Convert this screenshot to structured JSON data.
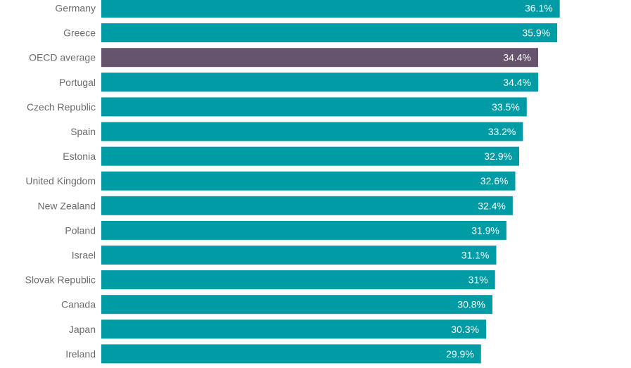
{
  "chart_data": {
    "type": "bar",
    "orientation": "horizontal",
    "categories": [
      "Germany",
      "Greece",
      "OECD average",
      "Portugal",
      "Czech Republic",
      "Spain",
      "Estonia",
      "United Kingdom",
      "New Zealand",
      "Poland",
      "Israel",
      "Slovak Republic",
      "Canada",
      "Japan",
      "Ireland"
    ],
    "values": [
      36.1,
      35.9,
      34.4,
      34.4,
      33.5,
      33.2,
      32.9,
      32.6,
      32.4,
      31.9,
      31.1,
      31,
      30.8,
      30.3,
      29.9
    ],
    "value_labels": [
      "36.1%",
      "35.9%",
      "34.4%",
      "34.4%",
      "33.5%",
      "33.2%",
      "32.9%",
      "32.6%",
      "32.4%",
      "31.9%",
      "31.1%",
      "31%",
      "30.8%",
      "30.3%",
      "29.9%"
    ],
    "highlight_category": "OECD average",
    "colors": {
      "bar": "#009ca6",
      "highlight": "#66546e",
      "category_text": "#6b6b6b",
      "value_text": "#ffffff"
    },
    "xlim": [
      0,
      41.1
    ],
    "grid": false,
    "legend": "none"
  }
}
